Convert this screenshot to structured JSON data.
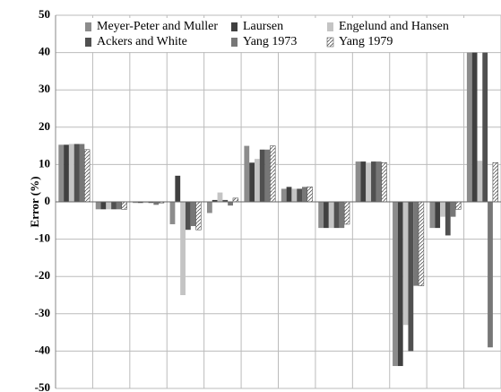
{
  "chart_data": {
    "type": "bar",
    "y_label": "Error (%)",
    "categories": [
      null,
      null,
      null,
      null,
      null,
      null,
      null,
      null,
      null,
      null,
      null,
      null
    ],
    "series": [
      {
        "name": "Meyer-Peter and Muller",
        "color": "#8c8c8c",
        "values": [
          15.3,
          -2,
          -0.3,
          -6,
          -3,
          15,
          3.5,
          -7,
          10.8,
          -44,
          -7,
          40
        ]
      },
      {
        "name": "Laursen",
        "color": "#404040",
        "values": [
          15.3,
          -2,
          -0.3,
          7,
          0.5,
          10.5,
          4,
          -7,
          10.8,
          -44,
          -7,
          40
        ]
      },
      {
        "name": "Engelund and Hansen",
        "color": "#c4c4c4",
        "values": [
          15.5,
          -2,
          -0.3,
          -25,
          2.5,
          11.5,
          3.5,
          -7,
          10.5,
          -33,
          -4,
          11
        ]
      },
      {
        "name": "Ackers and White",
        "color": "#505050",
        "values": [
          15.5,
          -2,
          -0.3,
          -7.5,
          0.5,
          14,
          3.5,
          -7,
          10.8,
          -40,
          -9,
          40
        ]
      },
      {
        "name": "Yang 1973",
        "color": "#777777",
        "values": [
          15.5,
          -2,
          -0.8,
          -6.5,
          -1,
          14,
          4,
          -7,
          10.8,
          -22.5,
          -4,
          -39
        ]
      },
      {
        "name": "Yang 1979",
        "color": "#ffffff",
        "pattern": "hatch",
        "values": [
          14,
          -2,
          -0.3,
          -7.5,
          1,
          15,
          4,
          -6,
          10.5,
          -22.5,
          -2,
          10.5
        ]
      }
    ],
    "ylim": [
      -50,
      50
    ],
    "yticks": [
      -50,
      -40,
      -30,
      -20,
      -10,
      0,
      10,
      20,
      30,
      40,
      50
    ],
    "grid": true
  }
}
